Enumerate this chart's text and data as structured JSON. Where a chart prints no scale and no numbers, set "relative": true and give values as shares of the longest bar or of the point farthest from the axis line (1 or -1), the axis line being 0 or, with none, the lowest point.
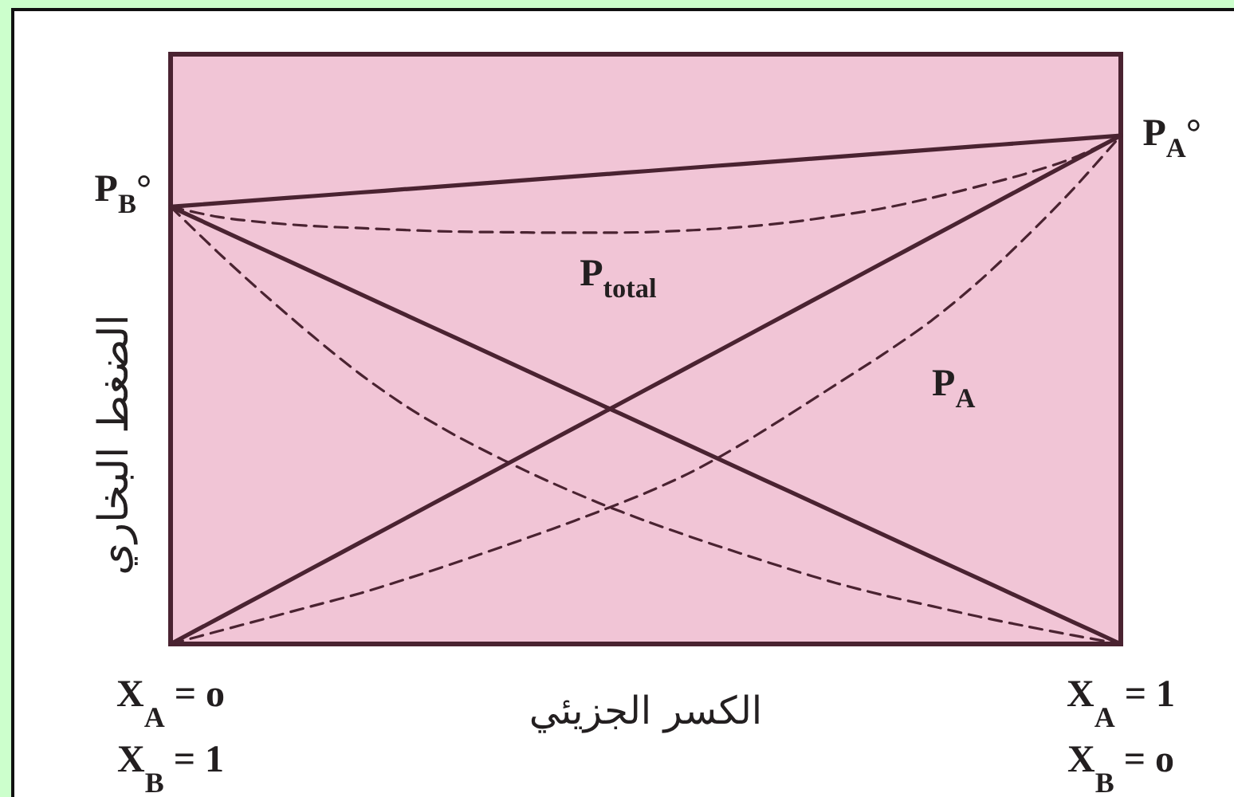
{
  "chart_data": {
    "type": "line",
    "relative": true,
    "xlabel": "الكسر الجزيئي",
    "ylabel": "الضغط البخاري",
    "categories": [
      "X$_{A}$ = o\nX$_{B}$ = 1",
      null,
      null,
      null,
      null,
      null,
      null,
      null,
      null,
      null,
      null,
      null,
      null,
      null,
      null,
      null,
      null,
      null,
      null,
      null,
      "X$_{A}$ = 1\nX$_{B}$ = o"
    ],
    "tick_labels": "x",
    "series": [
      {
        "color": "#4a2331",
        "line_style": "solid",
        "values": [
          0.86,
          0.867,
          0.874,
          0.881,
          0.888,
          0.895,
          0.902,
          0.909,
          0.916,
          0.923,
          0.93,
          0.937,
          0.944,
          0.951,
          0.958,
          0.965,
          0.972,
          0.979,
          0.986,
          0.993,
          1
        ]
      },
      {
        "color": "#4a2331",
        "line_style": "solid",
        "values": [
          0,
          0.05,
          0.1,
          0.15,
          0.2,
          0.25,
          0.3,
          0.35,
          0.4,
          0.45,
          0.5,
          0.55,
          0.6,
          0.65,
          0.7,
          0.75,
          0.8,
          0.85,
          0.9,
          0.95,
          1
        ]
      },
      {
        "color": "#4a2331",
        "line_style": "solid",
        "values": [
          0.86,
          0.817,
          0.774,
          0.731,
          0.688,
          0.645,
          0.602,
          0.559,
          0.516,
          0.473,
          0.43,
          0.387,
          0.344,
          0.301,
          0.258,
          0.215,
          0.172,
          0.129,
          0.086,
          0.043,
          0
        ]
      },
      {
        "color": "#4a2331",
        "line_style": "dashed",
        "values": [
          0.86,
          0.84,
          0.829,
          0.822,
          0.818,
          0.814,
          0.811,
          0.81,
          0.809,
          0.809,
          0.81,
          0.814,
          0.82,
          0.829,
          0.842,
          0.857,
          0.877,
          0.9,
          0.925,
          0.956,
          1
        ]
      },
      {
        "color": "#4a2331",
        "line_style": "dashed",
        "values": [
          0,
          0.025,
          0.05,
          0.075,
          0.1,
          0.129,
          0.16,
          0.192,
          0.225,
          0.26,
          0.297,
          0.34,
          0.392,
          0.45,
          0.51,
          0.57,
          0.635,
          0.712,
          0.8,
          0.895,
          1
        ]
      },
      {
        "color": "#4a2331",
        "line_style": "dashed",
        "values": [
          0.86,
          0.77,
          0.685,
          0.605,
          0.53,
          0.465,
          0.41,
          0.362,
          0.318,
          0.278,
          0.242,
          0.209,
          0.178,
          0.148,
          0.12,
          0.096,
          0.075,
          0.054,
          0.035,
          0.017,
          0
        ]
      }
    ],
    "annotations": [
      "P$_{B}$°",
      "P$_{A}$°",
      "P$_{total}$",
      "P$_{A}$"
    ]
  }
}
